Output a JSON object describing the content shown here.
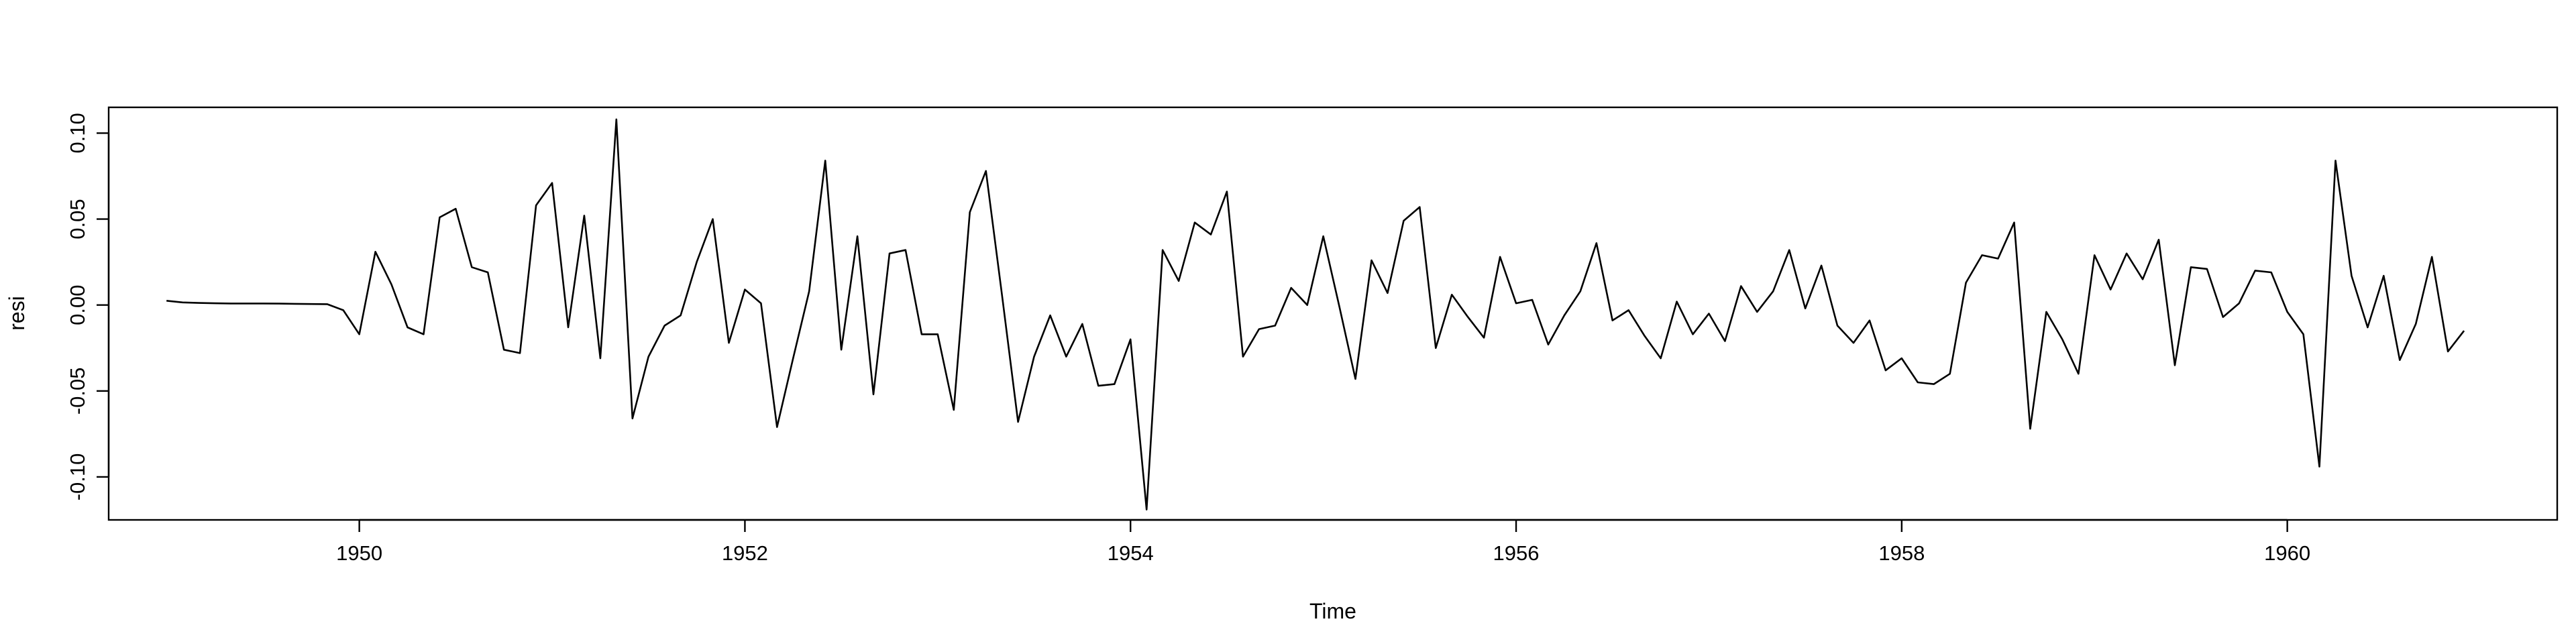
{
  "chart_data": {
    "type": "line",
    "title": "",
    "xlabel": "Time",
    "ylabel": "resi",
    "xlim": [
      1948.7,
      1961.4
    ],
    "ylim": [
      -0.125,
      0.115
    ],
    "x_ticks": [
      1950,
      1952,
      1954,
      1956,
      1958,
      1960
    ],
    "x_tick_labels": [
      "1950",
      "1952",
      "1954",
      "1956",
      "1958",
      "1960"
    ],
    "y_ticks": [
      -0.1,
      -0.05,
      0.0,
      0.05,
      0.1
    ],
    "y_tick_labels": [
      "-0.10",
      "-0.05",
      "0.00",
      "0.05",
      "0.10"
    ],
    "grid": false,
    "line_color": "#000000",
    "series": [
      {
        "start": 1949.0,
        "frequency": 12,
        "values": [
          0.0025,
          0.0015,
          0.0012,
          0.001,
          0.0009,
          0.0009,
          0.0009,
          0.0008,
          0.0007,
          0.0006,
          0.0005,
          -0.003,
          -0.017,
          0.031,
          0.012,
          -0.013,
          -0.017,
          0.051,
          0.056,
          0.022,
          0.019,
          -0.026,
          -0.028,
          0.058,
          0.071,
          -0.013,
          0.052,
          -0.031,
          0.108,
          -0.066,
          -0.03,
          -0.012,
          -0.006,
          0.025,
          0.05,
          -0.022,
          0.009,
          0.001,
          -0.071,
          -0.031,
          0.008,
          0.084,
          -0.026,
          0.04,
          -0.052,
          0.03,
          0.032,
          -0.017,
          -0.017,
          -0.061,
          0.054,
          0.078,
          0.006,
          -0.068,
          -0.03,
          -0.006,
          -0.03,
          -0.011,
          -0.047,
          -0.046,
          -0.02,
          -0.119,
          0.032,
          0.014,
          0.048,
          0.041,
          0.066,
          -0.03,
          -0.014,
          -0.012,
          0.01,
          0.0,
          0.04,
          -0.001,
          -0.043,
          0.026,
          0.007,
          0.049,
          0.057,
          -0.025,
          0.006,
          -0.007,
          -0.019,
          0.028,
          0.001,
          0.003,
          -0.023,
          -0.006,
          0.008,
          0.036,
          -0.009,
          -0.003,
          -0.018,
          -0.031,
          0.002,
          -0.017,
          -0.005,
          -0.021,
          0.011,
          -0.004,
          0.008,
          0.032,
          -0.002,
          0.023,
          -0.012,
          -0.022,
          -0.009,
          -0.038,
          -0.031,
          -0.045,
          -0.046,
          -0.04,
          0.013,
          0.029,
          0.027,
          0.048,
          -0.072,
          -0.004,
          -0.02,
          -0.04,
          0.029,
          0.009,
          0.03,
          0.015,
          0.038,
          -0.035,
          0.022,
          0.021,
          -0.007,
          0.001,
          0.02,
          0.019,
          -0.004,
          -0.017,
          -0.094,
          0.084,
          0.017,
          -0.013,
          0.017,
          -0.032,
          -0.011,
          0.028,
          -0.027,
          -0.015
        ]
      }
    ]
  }
}
